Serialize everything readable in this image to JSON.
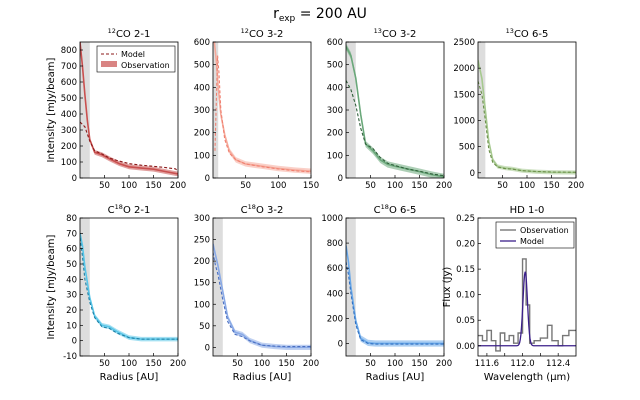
{
  "figure": {
    "suptitle_base": "r",
    "suptitle_sub": "exp",
    "suptitle_rest": " = 200 AU"
  },
  "chart_data": [
    {
      "type": "line",
      "title_sup": "12",
      "title_main": "CO 2-1",
      "xlabel": "",
      "ylabel": "Intensity [mJy/beam]",
      "xlim": [
        0,
        200
      ],
      "ylim": [
        0,
        850
      ],
      "xticks": [
        50,
        100,
        150,
        200
      ],
      "yticks": [
        0,
        100,
        200,
        300,
        400,
        500,
        600,
        700,
        800
      ],
      "shade": [
        0,
        20
      ],
      "color": "#c9504f",
      "legend": {
        "model": "Model",
        "observation": "Observation"
      },
      "model": [
        [
          0,
          350
        ],
        [
          10,
          320
        ],
        [
          20,
          230
        ],
        [
          30,
          170
        ],
        [
          45,
          150
        ],
        [
          60,
          125
        ],
        [
          75,
          110
        ],
        [
          100,
          90
        ],
        [
          125,
          80
        ],
        [
          150,
          73
        ],
        [
          175,
          65
        ],
        [
          195,
          57
        ],
        [
          200,
          40
        ]
      ],
      "obs": [
        [
          0,
          850
        ],
        [
          5,
          700
        ],
        [
          10,
          520
        ],
        [
          15,
          360
        ],
        [
          20,
          240
        ],
        [
          30,
          160
        ],
        [
          45,
          145
        ],
        [
          60,
          120
        ],
        [
          80,
          90
        ],
        [
          100,
          70
        ],
        [
          125,
          62
        ],
        [
          150,
          55
        ],
        [
          175,
          40
        ],
        [
          200,
          25
        ]
      ],
      "obs_err": 15
    },
    {
      "type": "line",
      "title_sup": "12",
      "title_main": "CO 3-2",
      "xlabel": "",
      "ylabel": "",
      "xlim": [
        0,
        150
      ],
      "ylim": [
        0,
        600
      ],
      "xticks": [
        50,
        100,
        150
      ],
      "yticks": [
        0,
        100,
        200,
        300,
        400,
        500,
        600
      ],
      "shade": [
        0,
        8
      ],
      "color": "#f5a99a",
      "model": [
        [
          3,
          120
        ],
        [
          5,
          330
        ],
        [
          7,
          540
        ],
        [
          9,
          470
        ],
        [
          12,
          300
        ],
        [
          18,
          170
        ],
        [
          25,
          110
        ],
        [
          35,
          80
        ],
        [
          50,
          62
        ],
        [
          75,
          50
        ],
        [
          100,
          40
        ],
        [
          125,
          32
        ],
        [
          150,
          27
        ]
      ],
      "obs": [
        [
          2,
          600
        ],
        [
          5,
          520
        ],
        [
          8,
          400
        ],
        [
          12,
          280
        ],
        [
          18,
          190
        ],
        [
          25,
          120
        ],
        [
          35,
          80
        ],
        [
          50,
          62
        ],
        [
          75,
          52
        ],
        [
          100,
          42
        ],
        [
          125,
          35
        ],
        [
          150,
          30
        ]
      ],
      "obs_err": 12
    },
    {
      "type": "line",
      "title_sup": "13",
      "title_main": "CO 3-2",
      "xlabel": "",
      "ylabel": "",
      "xlim": [
        0,
        200
      ],
      "ylim": [
        0,
        600
      ],
      "xticks": [
        50,
        100,
        150,
        200
      ],
      "yticks": [
        0,
        100,
        200,
        300,
        400,
        500,
        600
      ],
      "shade": [
        0,
        20
      ],
      "color": "#6aa87a",
      "model": [
        [
          0,
          430
        ],
        [
          10,
          390
        ],
        [
          20,
          320
        ],
        [
          30,
          220
        ],
        [
          40,
          150
        ],
        [
          55,
          130
        ],
        [
          70,
          90
        ],
        [
          85,
          65
        ],
        [
          100,
          55
        ],
        [
          125,
          40
        ],
        [
          150,
          30
        ],
        [
          175,
          18
        ],
        [
          200,
          10
        ]
      ],
      "obs": [
        [
          0,
          580
        ],
        [
          10,
          540
        ],
        [
          20,
          440
        ],
        [
          30,
          280
        ],
        [
          40,
          150
        ],
        [
          55,
          120
        ],
        [
          70,
          80
        ],
        [
          85,
          60
        ],
        [
          100,
          52
        ],
        [
          125,
          40
        ],
        [
          150,
          28
        ],
        [
          175,
          15
        ],
        [
          200,
          5
        ]
      ],
      "obs_err": 14
    },
    {
      "type": "line",
      "title_sup": "13",
      "title_main": "CO 6-5",
      "xlabel": "",
      "ylabel": "",
      "xlim": [
        0,
        200
      ],
      "ylim": [
        -100,
        2500
      ],
      "xticks": [
        50,
        100,
        150,
        200
      ],
      "yticks": [
        0,
        500,
        1000,
        1500,
        2000,
        2500
      ],
      "shade": [
        0,
        15
      ],
      "color": "#a6c98f",
      "model": [
        [
          0,
          1750
        ],
        [
          8,
          1500
        ],
        [
          15,
          1000
        ],
        [
          22,
          450
        ],
        [
          30,
          200
        ],
        [
          40,
          110
        ],
        [
          55,
          80
        ],
        [
          70,
          70
        ],
        [
          90,
          40
        ],
        [
          120,
          25
        ],
        [
          150,
          15
        ],
        [
          200,
          10
        ]
      ],
      "obs": [
        [
          0,
          2150
        ],
        [
          8,
          1800
        ],
        [
          15,
          1200
        ],
        [
          22,
          600
        ],
        [
          30,
          250
        ],
        [
          40,
          120
        ],
        [
          55,
          90
        ],
        [
          70,
          75
        ],
        [
          90,
          40
        ],
        [
          120,
          20
        ],
        [
          150,
          10
        ],
        [
          200,
          5
        ]
      ],
      "obs_err": 40
    },
    {
      "type": "line",
      "title_sup": "18",
      "title_main": "C O 2-1",
      "title_prefix": "C",
      "xlabel": "Radius [AU]",
      "ylabel": "Intensity [mJy/beam]",
      "xlim": [
        0,
        200
      ],
      "ylim": [
        -10,
        80
      ],
      "xticks": [
        50,
        100,
        150,
        200
      ],
      "yticks": [
        -10,
        0,
        10,
        20,
        30,
        40,
        50,
        60,
        70,
        80
      ],
      "shade": [
        0,
        20
      ],
      "color": "#59c6e8",
      "model": [
        [
          0,
          67
        ],
        [
          5,
          55
        ],
        [
          10,
          40
        ],
        [
          20,
          25
        ],
        [
          30,
          15
        ],
        [
          45,
          9
        ],
        [
          60,
          8
        ],
        [
          75,
          5
        ],
        [
          100,
          2
        ],
        [
          125,
          1
        ],
        [
          150,
          1
        ],
        [
          200,
          1
        ]
      ],
      "obs": [
        [
          0,
          70
        ],
        [
          5,
          62
        ],
        [
          10,
          48
        ],
        [
          20,
          28
        ],
        [
          30,
          16
        ],
        [
          45,
          10
        ],
        [
          60,
          9
        ],
        [
          75,
          6
        ],
        [
          100,
          2
        ],
        [
          125,
          1
        ],
        [
          150,
          1
        ],
        [
          200,
          1
        ]
      ],
      "obs_err": 1.5
    },
    {
      "type": "line",
      "title_sup": "18",
      "title_main": "C O 3-2",
      "title_prefix": "C",
      "xlabel": "Radius [AU]",
      "ylabel": "",
      "xlim": [
        0,
        200
      ],
      "ylim": [
        -20,
        300
      ],
      "xticks": [
        50,
        100,
        150,
        200
      ],
      "yticks": [
        0,
        50,
        100,
        150,
        200,
        250,
        300
      ],
      "shade": [
        0,
        20
      ],
      "color": "#8aaae6",
      "model": [
        [
          0,
          220
        ],
        [
          5,
          190
        ],
        [
          10,
          170
        ],
        [
          20,
          110
        ],
        [
          30,
          60
        ],
        [
          45,
          30
        ],
        [
          60,
          25
        ],
        [
          75,
          15
        ],
        [
          100,
          5
        ],
        [
          125,
          3
        ],
        [
          150,
          2
        ],
        [
          200,
          2
        ]
      ],
      "obs": [
        [
          0,
          240
        ],
        [
          5,
          215
        ],
        [
          10,
          190
        ],
        [
          20,
          130
        ],
        [
          30,
          70
        ],
        [
          45,
          35
        ],
        [
          60,
          30
        ],
        [
          75,
          16
        ],
        [
          100,
          5
        ],
        [
          125,
          2
        ],
        [
          150,
          0
        ],
        [
          200,
          0
        ]
      ],
      "obs_err": 6
    },
    {
      "type": "line",
      "title_sup": "18",
      "title_main": "C O 6-5",
      "title_prefix": "C",
      "xlabel": "Radius [AU]",
      "ylabel": "",
      "xlim": [
        0,
        200
      ],
      "ylim": [
        -100,
        1000
      ],
      "xticks": [
        50,
        100,
        150,
        200
      ],
      "yticks": [
        0,
        200,
        400,
        600,
        800,
        1000
      ],
      "shade": [
        0,
        20
      ],
      "color": "#6aa8e8",
      "model": [
        [
          0,
          650
        ],
        [
          5,
          550
        ],
        [
          10,
          400
        ],
        [
          20,
          150
        ],
        [
          30,
          30
        ],
        [
          45,
          0
        ],
        [
          60,
          -5
        ],
        [
          100,
          -5
        ],
        [
          150,
          -5
        ],
        [
          200,
          -5
        ]
      ],
      "obs": [
        [
          0,
          780
        ],
        [
          5,
          650
        ],
        [
          10,
          450
        ],
        [
          20,
          180
        ],
        [
          30,
          40
        ],
        [
          45,
          5
        ],
        [
          60,
          0
        ],
        [
          100,
          0
        ],
        [
          150,
          0
        ],
        [
          200,
          0
        ]
      ],
      "obs_err": 25
    },
    {
      "type": "line",
      "title": "HD 1-0",
      "xlabel": "Wavelength (μm)",
      "ylabel": "Flux (Jy)",
      "xlim": [
        111.5,
        112.6
      ],
      "ylim": [
        -0.02,
        0.25
      ],
      "xticks": [
        111.6,
        111.8,
        112.0,
        112.2,
        112.4
      ],
      "xtick_labels": [
        "111.6",
        "",
        "112.0",
        "",
        "112.4"
      ],
      "yticks": [
        0.0,
        0.05,
        0.1,
        0.15,
        0.2,
        0.25
      ],
      "legend": {
        "observation": "Observation",
        "model": "Model"
      },
      "observation_step": [
        [
          111.5,
          0.02
        ],
        [
          111.55,
          0.01
        ],
        [
          111.6,
          0.03
        ],
        [
          111.65,
          0.01
        ],
        [
          111.7,
          -0.01
        ],
        [
          111.75,
          0.025
        ],
        [
          111.8,
          0.01
        ],
        [
          111.85,
          0.02
        ],
        [
          111.9,
          0.005
        ],
        [
          111.95,
          0.025
        ],
        [
          112.0,
          0.17
        ],
        [
          112.04,
          0.08
        ],
        [
          112.08,
          0.005
        ],
        [
          112.13,
          0.01
        ],
        [
          112.2,
          0.015
        ],
        [
          112.28,
          0.04
        ],
        [
          112.33,
          0.01
        ],
        [
          112.4,
          0.0
        ],
        [
          112.45,
          0.02
        ],
        [
          112.52,
          0.03
        ],
        [
          112.6,
          0.03
        ]
      ],
      "model_gauss": {
        "center": 112.03,
        "amplitude": 0.145,
        "sigma": 0.025,
        "baseline": 0.0
      }
    }
  ]
}
